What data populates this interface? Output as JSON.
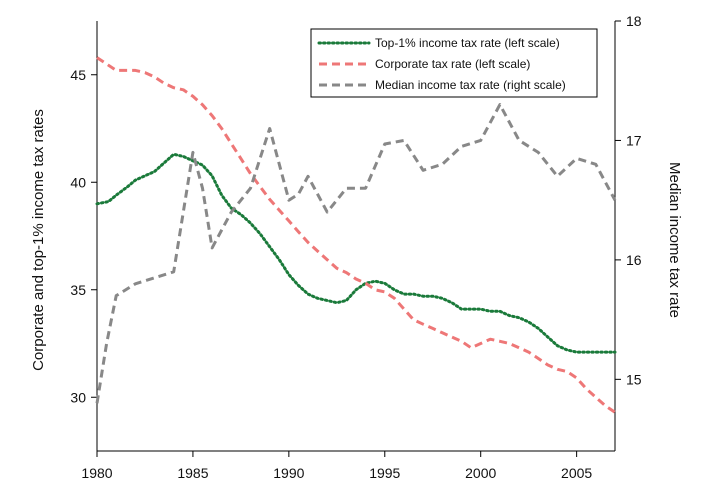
{
  "chart_data": {
    "type": "line",
    "xlabel": "",
    "ylabel_left": "Corporate and top-1% income tax rates",
    "ylabel_right": "Median income tax rate",
    "xlim": [
      1980,
      2007
    ],
    "ylim_left": [
      27.5,
      47.5
    ],
    "ylim_right": [
      14.4,
      18
    ],
    "xticks": [
      1980,
      1985,
      1990,
      1995,
      2000,
      2005
    ],
    "yticks_left": [
      30,
      35,
      40,
      45
    ],
    "yticks_right": [
      15,
      16,
      17,
      18
    ],
    "grid": false,
    "legend_position": "top-right",
    "series": [
      {
        "name": "Top-1% income tax rate (left scale)",
        "axis": "left",
        "color": "#1a7a3a",
        "dash": "dotted",
        "x": [
          1980,
          1980.6,
          1981,
          1981.6,
          1982,
          1982.5,
          1983,
          1983.5,
          1984,
          1984.5,
          1985,
          1985.5,
          1986,
          1986.5,
          1987,
          1987.5,
          1988,
          1988.5,
          1989,
          1989.5,
          1990,
          1990.5,
          1991,
          1991.5,
          1992,
          1992.5,
          1993,
          1993.5,
          1994,
          1994.5,
          1995,
          1995.5,
          1996,
          1996.5,
          1997,
          1997.5,
          1998,
          1998.5,
          1999,
          1999.5,
          2000,
          2000.5,
          2001,
          2001.5,
          2002,
          2002.5,
          2003,
          2003.5,
          2004,
          2004.5,
          2005,
          2005.5,
          2006,
          2006.5,
          2007
        ],
        "y": [
          39.0,
          39.1,
          39.4,
          39.8,
          40.1,
          40.3,
          40.5,
          40.9,
          41.3,
          41.2,
          41.0,
          40.8,
          40.3,
          39.4,
          38.8,
          38.5,
          38.1,
          37.6,
          37.0,
          36.4,
          35.7,
          35.2,
          34.8,
          34.6,
          34.5,
          34.4,
          34.5,
          35.0,
          35.3,
          35.4,
          35.3,
          35.0,
          34.8,
          34.8,
          34.7,
          34.7,
          34.6,
          34.4,
          34.1,
          34.1,
          34.1,
          34.0,
          34.0,
          33.8,
          33.7,
          33.5,
          33.2,
          32.8,
          32.4,
          32.2,
          32.1,
          32.1,
          32.1,
          32.1,
          32.1
        ]
      },
      {
        "name": "Corporate tax rate (left scale)",
        "axis": "left",
        "color": "#ee7777",
        "dash": "dashed",
        "x": [
          1980,
          1980.5,
          1981,
          1981.5,
          1982,
          1982.5,
          1983,
          1983.5,
          1984,
          1984.5,
          1985,
          1985.5,
          1986,
          1986.5,
          1987,
          1987.5,
          1988,
          1988.5,
          1989,
          1989.5,
          1990,
          1990.5,
          1991,
          1991.5,
          1992,
          1992.5,
          1993,
          1993.5,
          1994,
          1994.5,
          1995,
          1995.5,
          1996,
          1996.5,
          1997,
          1997.5,
          1998,
          1998.5,
          1999,
          1999.5,
          2000,
          2000.5,
          2001,
          2001.5,
          2002,
          2002.5,
          2003,
          2003.5,
          2004,
          2004.5,
          2005,
          2005.5,
          2006,
          2006.5,
          2007
        ],
        "y": [
          45.8,
          45.5,
          45.2,
          45.2,
          45.2,
          45.1,
          44.9,
          44.6,
          44.4,
          44.3,
          44.0,
          43.6,
          43.1,
          42.5,
          41.8,
          41.1,
          40.4,
          39.8,
          39.2,
          38.7,
          38.2,
          37.7,
          37.2,
          36.8,
          36.4,
          36.0,
          35.8,
          35.5,
          35.3,
          35.0,
          34.9,
          34.6,
          34.1,
          33.6,
          33.4,
          33.2,
          33.0,
          32.8,
          32.6,
          32.3,
          32.5,
          32.7,
          32.6,
          32.5,
          32.3,
          32.1,
          31.8,
          31.5,
          31.3,
          31.2,
          30.9,
          30.4,
          30.0,
          29.6,
          29.3
        ]
      },
      {
        "name": "Median income tax rate (right scale)",
        "axis": "right",
        "color": "#888888",
        "dash": "dashed",
        "x": [
          1980,
          1980.5,
          1981,
          1982,
          1983,
          1984,
          1984.5,
          1985,
          1985.5,
          1986,
          1987,
          1988,
          1989,
          1990,
          1990.5,
          1991,
          1992,
          1993,
          1994,
          1995,
          1996,
          1997,
          1998,
          1999,
          2000,
          2001,
          2002,
          2003,
          2004,
          2005,
          2006,
          2007
        ],
        "y": [
          14.8,
          15.3,
          15.7,
          15.8,
          15.85,
          15.9,
          16.4,
          16.9,
          16.6,
          16.1,
          16.4,
          16.6,
          17.1,
          16.5,
          16.55,
          16.7,
          16.4,
          16.6,
          16.6,
          16.97,
          17.0,
          16.75,
          16.8,
          16.95,
          17.0,
          17.3,
          17.0,
          16.9,
          16.7,
          16.85,
          16.8,
          16.5
        ]
      }
    ]
  }
}
